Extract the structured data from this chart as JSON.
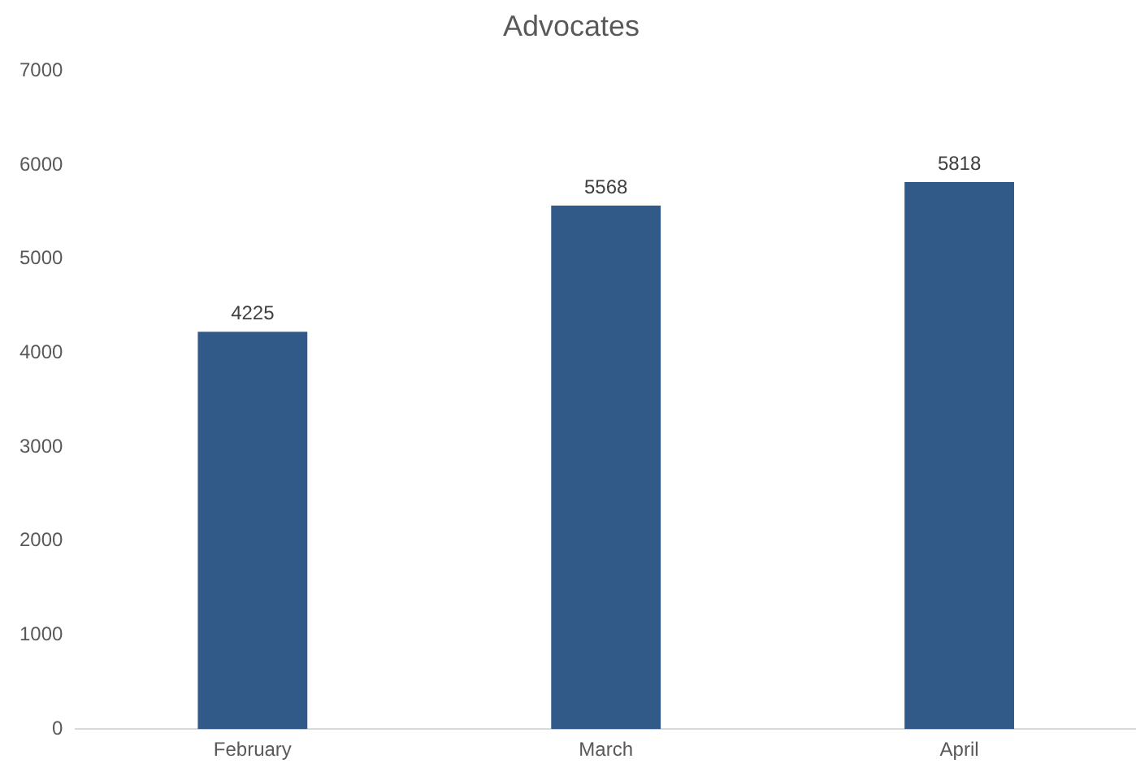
{
  "chart_data": {
    "type": "bar",
    "title": "Advocates",
    "categories": [
      "February",
      "March",
      "April"
    ],
    "values": [
      4225,
      5568,
      5818
    ],
    "color": "#325a88",
    "ylim": [
      0,
      7000
    ],
    "yticks": [
      0,
      1000,
      2000,
      3000,
      4000,
      5000,
      6000,
      7000
    ],
    "grid": false,
    "legend": false,
    "data_labels": true
  }
}
